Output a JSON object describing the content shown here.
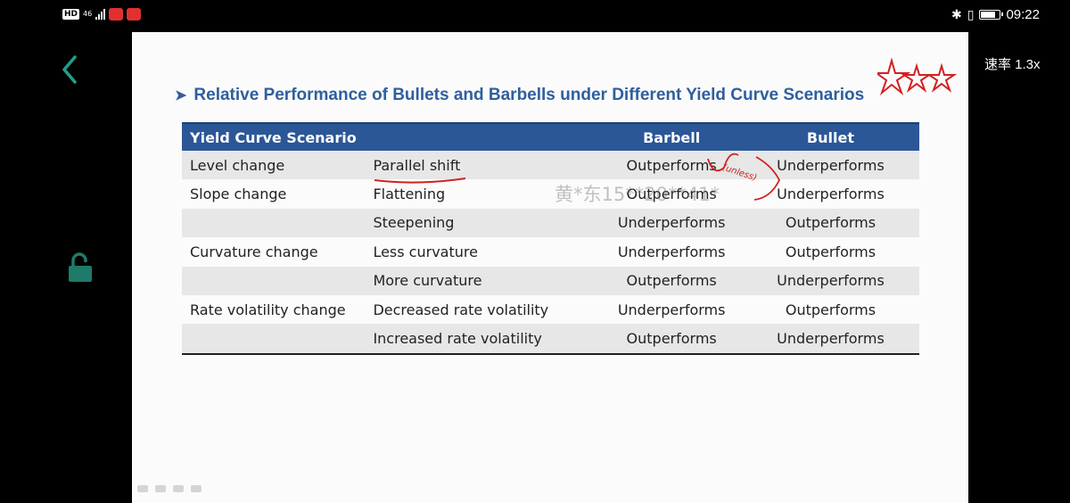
{
  "status_bar": {
    "network_type": "46",
    "network_badge": "HD",
    "time": "09:22"
  },
  "player": {
    "speed_label": "速率 1.3x"
  },
  "slide": {
    "title": "Relative Performance of Bullets and Barbells under Different Yield Curve Scenarios",
    "watermark": "黄*东15**20**41*",
    "handwritten_note": "(unless)",
    "table": {
      "headers": [
        "Yield Curve Scenario",
        "",
        "Barbell",
        "Bullet"
      ],
      "rows": [
        [
          "Level change",
          "Parallel shift",
          "Outperforms",
          "Underperforms"
        ],
        [
          "Slope change",
          "Flattening",
          "Outperforms",
          "Underperforms"
        ],
        [
          "",
          "Steepening",
          "Underperforms",
          "Outperforms"
        ],
        [
          "Curvature change",
          "Less curvature",
          "Underperforms",
          "Outperforms"
        ],
        [
          "",
          "More curvature",
          "Outperforms",
          "Underperforms"
        ],
        [
          "Rate volatility change",
          "Decreased rate volatility",
          "Underperforms",
          "Outperforms"
        ],
        [
          "",
          "Increased rate volatility",
          "Outperforms",
          "Underperforms"
        ]
      ]
    }
  },
  "colors": {
    "header_bg": "#2b5797",
    "title": "#2f5f9e",
    "ink": "#d32020",
    "accent": "#1fa08a"
  }
}
